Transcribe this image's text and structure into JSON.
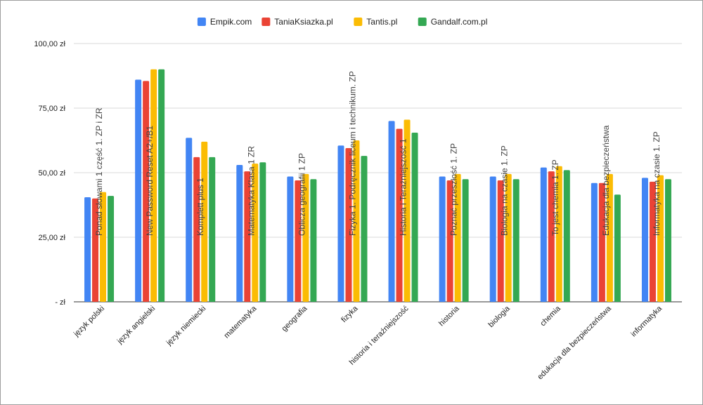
{
  "chart_data": {
    "type": "bar",
    "title": "",
    "xlabel": "",
    "ylabel": "",
    "ylim": [
      0,
      100
    ],
    "y_ticks": [
      {
        "value": 0,
        "label": "-  zł"
      },
      {
        "value": 25,
        "label": "25,00  zł"
      },
      {
        "value": 50,
        "label": "50,00  zł"
      },
      {
        "value": 75,
        "label": "75,00  zł"
      },
      {
        "value": 100,
        "label": "100,00  zł"
      }
    ],
    "grid": true,
    "legend_position": "top-center",
    "categories": [
      "język polski",
      "język angielski",
      "język niemiecki",
      "matematyka",
      "geografia",
      "fizyka",
      "historia i teraźniejszość",
      "historia",
      "biologia",
      "chemia",
      "edukacja dla bezpieczeństwa",
      "informatyka"
    ],
    "book_titles": [
      "Ponad słowami 1 część 1. ZP i ZR",
      "New Password Reset A2+/B1",
      "Komplett plus 1",
      "Matematyka Klasa 1 ZR",
      "Oblicza geografii 1 ZP",
      "Fizyka 1. Podręcznik liceum i technikum. ZP",
      "Historia i Teraźniejszość 1",
      "Poznać przeszłość 1. ZP",
      "Biologia na czasie 1. ZP",
      "To jest chemia 1. ZP",
      "Edukacja dla bezpieczeństwa",
      "Informatyka na czasie 1. ZP"
    ],
    "series": [
      {
        "name": "Empik.com",
        "color": "#4285F4",
        "values": [
          40.5,
          86,
          63.5,
          53,
          48.5,
          60.5,
          70,
          48.5,
          48.5,
          52,
          46,
          48
        ]
      },
      {
        "name": "TaniaKsiazka.pl",
        "color": "#EA4335",
        "values": [
          40,
          85.5,
          56,
          50.5,
          47,
          59.5,
          67,
          47,
          47,
          50.5,
          46,
          46.5
        ]
      },
      {
        "name": "Tantis.pl",
        "color": "#FBBC04",
        "values": [
          42.5,
          90,
          62,
          53.5,
          49.5,
          62.5,
          70.5,
          49.5,
          49.5,
          52.5,
          49.5,
          49
        ]
      },
      {
        "name": "Gandalf.com.pl",
        "color": "#34A853",
        "values": [
          41,
          90,
          56,
          54,
          47.5,
          56.5,
          65.5,
          47.5,
          47.5,
          51,
          41.5,
          47.5
        ]
      }
    ]
  }
}
